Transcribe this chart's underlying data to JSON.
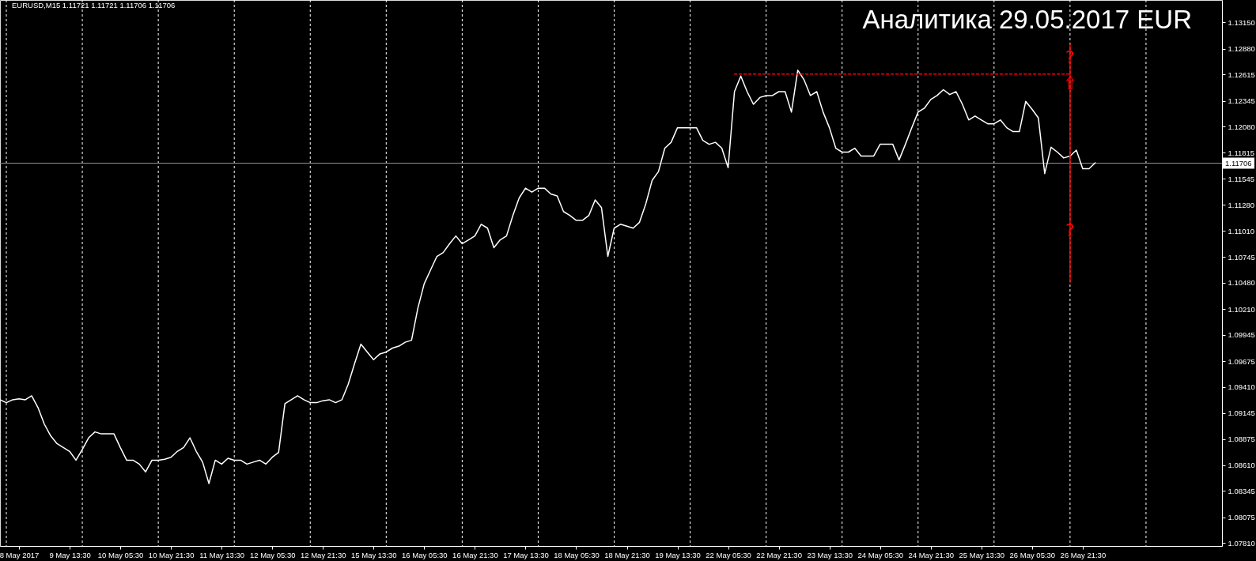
{
  "chart_data": {
    "type": "line",
    "title": "Аналитика 29.05.2017 EUR",
    "annotations": [
      "EURUSD,M15 1.11721 1.11721 1.11706 1.11706",
      {
        "text": "?",
        "y": 1.1279
      },
      {
        "text": "⇧",
        "y": 1.1252
      },
      {
        "text": "?",
        "y": 1.1101
      }
    ],
    "categories": [
      null,
      null,
      null,
      "8 May 2017",
      null,
      null,
      null,
      null,
      null,
      null,
      null,
      "9 May 13:30",
      null,
      null,
      null,
      null,
      null,
      null,
      null,
      "10 May 05:30",
      null,
      null,
      null,
      null,
      null,
      null,
      null,
      "10 May 21:30",
      null,
      null,
      null,
      null,
      null,
      null,
      null,
      "11 May 13:30",
      null,
      null,
      null,
      null,
      null,
      null,
      null,
      "12 May 05:30",
      null,
      null,
      null,
      null,
      null,
      null,
      null,
      "12 May 21:30",
      null,
      null,
      null,
      null,
      null,
      null,
      null,
      "15 May 13:30",
      null,
      null,
      null,
      null,
      null,
      null,
      null,
      "16 May 05:30",
      null,
      null,
      null,
      null,
      null,
      null,
      null,
      "16 May 21:30",
      null,
      null,
      null,
      null,
      null,
      null,
      null,
      "17 May 13:30",
      null,
      null,
      null,
      null,
      null,
      null,
      null,
      "18 May 05:30",
      null,
      null,
      null,
      null,
      null,
      null,
      null,
      "18 May 21:30",
      null,
      null,
      null,
      null,
      null,
      null,
      null,
      "19 May 13:30",
      null,
      null,
      null,
      null,
      null,
      null,
      null,
      "22 May 05:30",
      null,
      null,
      null,
      null,
      null,
      null,
      null,
      "22 May 21:30",
      null,
      null,
      null,
      null,
      null,
      null,
      null,
      "23 May 13:30",
      null,
      null,
      null,
      null,
      null,
      null,
      null,
      "24 May 05:30",
      null,
      null,
      null,
      null,
      null,
      null,
      null,
      "24 May 21:30",
      null,
      null,
      null,
      null,
      null,
      null,
      null,
      "25 May 13:30",
      null,
      null,
      null,
      null,
      null,
      null,
      null,
      "26 May 05:30",
      null,
      null,
      null,
      null,
      null,
      null,
      null,
      "26 May 21:30",
      null,
      null,
      null,
      null,
      null,
      null,
      null,
      null,
      null,
      null,
      null,
      null,
      null,
      null,
      null,
      null,
      null,
      null,
      null,
      null,
      null,
      null
    ],
    "ylim": [
      1.0778,
      1.1338
    ],
    "yticks": [
      {
        "value": 1.0781,
        "label": "1.07810"
      },
      {
        "value": 1.08075,
        "label": "1.08075"
      },
      {
        "value": 1.08345,
        "label": "1.08345"
      },
      {
        "value": 1.0861,
        "label": "1.08610"
      },
      {
        "value": 1.08875,
        "label": "1.08875"
      },
      {
        "value": 1.09145,
        "label": "1.09145"
      },
      {
        "value": 1.0941,
        "label": "1.09410"
      },
      {
        "value": 1.09675,
        "label": "1.09675"
      },
      {
        "value": 1.09945,
        "label": "1.09945"
      },
      {
        "value": 1.1021,
        "label": "1.10210"
      },
      {
        "value": 1.1048,
        "label": "1.10480"
      },
      {
        "value": 1.10745,
        "label": "1.10745"
      },
      {
        "value": 1.1101,
        "label": "1.11010"
      },
      {
        "value": 1.1128,
        "label": "1.11280"
      },
      {
        "value": 1.11545,
        "label": "1.11545"
      },
      {
        "value": 1.11815,
        "label": "1.11815"
      },
      {
        "value": 1.1208,
        "label": "1.12080"
      },
      {
        "value": 1.12345,
        "label": "1.12345"
      },
      {
        "value": 1.12615,
        "label": "1.12615"
      },
      {
        "value": 1.1288,
        "label": "1.12880"
      },
      {
        "value": 1.1315,
        "label": "1.13150"
      }
    ],
    "series": [
      {
        "color": "#ffffff",
        "values": [
          1.0928,
          1.0925,
          1.0928,
          1.0929,
          1.0928,
          1.0932,
          1.092,
          1.0903,
          1.0891,
          1.0883,
          1.0879,
          1.0875,
          1.0866,
          1.0877,
          1.0889,
          1.0895,
          1.0893,
          1.0893,
          1.0893,
          1.0879,
          1.0866,
          1.0866,
          1.0862,
          1.0854,
          1.0866,
          1.0866,
          1.0867,
          1.0869,
          1.0875,
          1.0879,
          1.0889,
          1.0875,
          1.0864,
          1.0842,
          1.0866,
          1.0862,
          1.0868,
          1.0866,
          1.0866,
          1.0862,
          1.0864,
          1.0866,
          1.0862,
          1.0869,
          1.0874,
          1.0924,
          1.0928,
          1.0932,
          1.0928,
          1.0925,
          1.0925,
          1.0927,
          1.0928,
          1.0925,
          1.0928,
          1.0944,
          1.0965,
          1.0985,
          1.0977,
          1.0969,
          1.0975,
          1.0977,
          1.0981,
          1.0983,
          1.0987,
          1.0989,
          1.1022,
          1.1047,
          1.1061,
          1.1075,
          1.1079,
          1.1088,
          1.1096,
          1.1088,
          1.1092,
          1.1096,
          1.1108,
          1.1104,
          1.1084,
          1.1092,
          1.1096,
          1.1117,
          1.1135,
          1.1145,
          1.1141,
          1.1145,
          1.1145,
          1.1139,
          1.1137,
          1.1121,
          1.1117,
          1.1112,
          1.1112,
          1.1117,
          1.1133,
          1.1125,
          1.1075,
          1.1104,
          1.1108,
          1.1106,
          1.1104,
          1.111,
          1.1129,
          1.1153,
          1.1162,
          1.1186,
          1.1192,
          1.1207,
          1.1207,
          1.1207,
          1.1207,
          1.1194,
          1.119,
          1.1192,
          1.1186,
          1.1166,
          1.1244,
          1.126,
          1.1244,
          1.1231,
          1.1238,
          1.124,
          1.124,
          1.1244,
          1.1244,
          1.1223,
          1.1266,
          1.1256,
          1.124,
          1.1244,
          1.1223,
          1.1207,
          1.1186,
          1.1182,
          1.1182,
          1.1186,
          1.1178,
          1.1178,
          1.1178,
          1.119,
          1.119,
          1.119,
          1.1174,
          1.119,
          1.1207,
          1.1223,
          1.1227,
          1.1236,
          1.124,
          1.1246,
          1.1241,
          1.1244,
          1.1231,
          1.1215,
          1.1219,
          1.1215,
          1.1211,
          1.1211,
          1.1215,
          1.1207,
          1.1203,
          1.1203,
          1.1234,
          1.1226,
          1.1217,
          1.116,
          1.1187,
          1.1182,
          1.1176,
          1.1178,
          1.1184,
          1.1165,
          1.1165,
          1.1171,
          null,
          null,
          null,
          null,
          null,
          null,
          null,
          null,
          null,
          null,
          null,
          null,
          null,
          null,
          null,
          null,
          null,
          null,
          null,
          null
        ]
      },
      {
        "color": "#ff0000",
        "line_style": "dashed",
        "values": [
          null,
          null,
          null,
          null,
          null,
          null,
          null,
          null,
          null,
          null,
          null,
          null,
          null,
          null,
          null,
          null,
          null,
          null,
          null,
          null,
          null,
          null,
          null,
          null,
          null,
          null,
          null,
          null,
          null,
          null,
          null,
          null,
          null,
          null,
          null,
          null,
          null,
          null,
          null,
          null,
          null,
          null,
          null,
          null,
          null,
          null,
          null,
          null,
          null,
          null,
          null,
          null,
          null,
          null,
          null,
          null,
          null,
          null,
          null,
          null,
          null,
          null,
          null,
          null,
          null,
          null,
          null,
          null,
          null,
          null,
          null,
          null,
          null,
          null,
          null,
          null,
          null,
          null,
          null,
          null,
          null,
          null,
          null,
          null,
          null,
          null,
          null,
          null,
          null,
          null,
          null,
          null,
          null,
          null,
          null,
          null,
          null,
          null,
          null,
          null,
          null,
          null,
          null,
          null,
          null,
          null,
          null,
          null,
          null,
          null,
          null,
          null,
          null,
          null,
          null,
          null,
          1.1262,
          1.1262,
          1.1262,
          1.1262,
          1.1262,
          1.1262,
          1.1262,
          1.1262,
          1.1262,
          1.1262,
          1.1262,
          1.1262,
          1.1262,
          1.1262,
          1.1262,
          1.1262,
          1.1262,
          1.1262,
          1.1262,
          1.1262,
          1.1262,
          1.1262,
          1.1262,
          1.1262,
          1.1262,
          1.1262,
          1.1262,
          1.1262,
          1.1262,
          1.1262,
          1.1262,
          1.1262,
          1.1262,
          1.1262,
          1.1262,
          1.1262,
          1.1262,
          1.1262,
          1.1262,
          1.1262,
          1.1262,
          1.1262,
          1.1262,
          1.1262,
          1.1262,
          1.1262,
          1.1262,
          1.1262,
          1.1262,
          1.1262,
          1.1262,
          1.1262,
          1.1262,
          1.1262,
          null,
          null,
          null,
          null,
          null,
          null,
          null,
          null,
          null,
          null,
          null,
          null,
          null,
          null,
          null,
          null,
          null,
          null,
          null,
          null,
          null,
          null,
          null,
          null
        ]
      },
      {
        "type": "bar",
        "color": "#ff0000",
        "values": [
          null,
          null,
          null,
          null,
          null,
          null,
          null,
          null,
          null,
          null,
          null,
          null,
          null,
          null,
          null,
          null,
          null,
          null,
          null,
          null,
          null,
          null,
          null,
          null,
          null,
          null,
          null,
          null,
          null,
          null,
          null,
          null,
          null,
          null,
          null,
          null,
          null,
          null,
          null,
          null,
          null,
          null,
          null,
          null,
          null,
          null,
          null,
          null,
          null,
          null,
          null,
          null,
          null,
          null,
          null,
          null,
          null,
          null,
          null,
          null,
          null,
          null,
          null,
          null,
          null,
          null,
          null,
          null,
          null,
          null,
          null,
          null,
          null,
          null,
          null,
          null,
          null,
          null,
          null,
          null,
          null,
          null,
          null,
          null,
          null,
          null,
          null,
          null,
          null,
          null,
          null,
          null,
          null,
          null,
          null,
          null,
          null,
          null,
          null,
          null,
          null,
          null,
          null,
          null,
          null,
          null,
          null,
          null,
          null,
          null,
          null,
          null,
          null,
          null,
          null,
          null,
          null,
          null,
          null,
          null,
          null,
          null,
          null,
          null,
          null,
          null,
          null,
          null,
          null,
          null,
          null,
          null,
          null,
          null,
          null,
          null,
          null,
          null,
          null,
          null,
          null,
          null,
          null,
          null,
          null,
          null,
          null,
          null,
          null,
          null,
          null,
          null,
          null,
          null,
          null,
          null,
          null,
          null,
          null,
          null,
          null,
          null,
          null,
          null,
          null,
          null,
          null,
          null,
          null,
          0.0245,
          null,
          null,
          null,
          null,
          null,
          null,
          null,
          null,
          null,
          null,
          null,
          null,
          null,
          null,
          null,
          null,
          null,
          null,
          null,
          null,
          null,
          null,
          null,
          null
        ],
        "base": [
          null,
          null,
          null,
          null,
          null,
          null,
          null,
          null,
          null,
          null,
          null,
          null,
          null,
          null,
          null,
          null,
          null,
          null,
          null,
          null,
          null,
          null,
          null,
          null,
          null,
          null,
          null,
          null,
          null,
          null,
          null,
          null,
          null,
          null,
          null,
          null,
          null,
          null,
          null,
          null,
          null,
          null,
          null,
          null,
          null,
          null,
          null,
          null,
          null,
          null,
          null,
          null,
          null,
          null,
          null,
          null,
          null,
          null,
          null,
          null,
          null,
          null,
          null,
          null,
          null,
          null,
          null,
          null,
          null,
          null,
          null,
          null,
          null,
          null,
          null,
          null,
          null,
          null,
          null,
          null,
          null,
          null,
          null,
          null,
          null,
          null,
          null,
          null,
          null,
          null,
          null,
          null,
          null,
          null,
          null,
          null,
          null,
          null,
          null,
          null,
          null,
          null,
          null,
          null,
          null,
          null,
          null,
          null,
          null,
          null,
          null,
          null,
          null,
          null,
          null,
          null,
          null,
          null,
          null,
          null,
          null,
          null,
          null,
          null,
          null,
          null,
          null,
          null,
          null,
          null,
          null,
          null,
          null,
          null,
          null,
          null,
          null,
          null,
          null,
          null,
          null,
          null,
          null,
          null,
          null,
          null,
          null,
          null,
          null,
          null,
          null,
          null,
          null,
          null,
          null,
          null,
          null,
          null,
          null,
          null,
          null,
          null,
          null,
          null,
          null,
          null,
          null,
          null,
          null,
          1.1048,
          null,
          null,
          null,
          null,
          null,
          null,
          null,
          null,
          null,
          null,
          null,
          null,
          null,
          null,
          null,
          null,
          null,
          null,
          null,
          null,
          null,
          null,
          null,
          null
        ]
      }
    ],
    "ref_lines": [
      {
        "axis": "y",
        "value": 1.11706,
        "label": "1.11706",
        "color": "#8c96a8"
      }
    ]
  }
}
